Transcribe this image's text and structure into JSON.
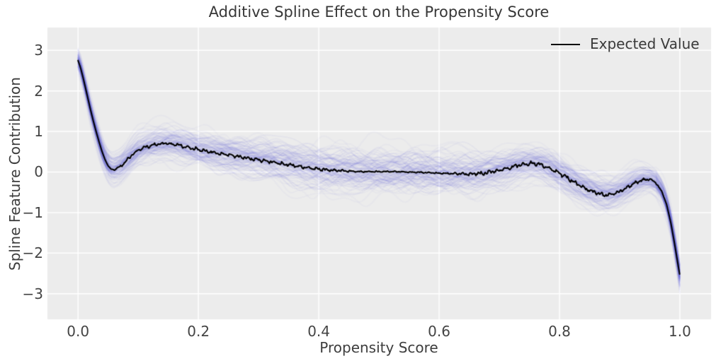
{
  "title": "Additive Spline Effect on the Propensity Score",
  "axes": {
    "xlabel": "Propensity Score",
    "ylabel": "Spline Feature Contribution",
    "xlim": [
      -0.052,
      1.053
    ],
    "ylim": [
      -3.65,
      3.58
    ],
    "x_ticks": [
      0.0,
      0.2,
      0.4,
      0.6,
      0.8,
      1.0
    ],
    "x_tick_labels": [
      "0.0",
      "0.2",
      "0.4",
      "0.6",
      "0.8",
      "1.0"
    ],
    "y_ticks": [
      3,
      2,
      1,
      0,
      -1,
      -2,
      -3
    ],
    "y_tick_labels": [
      "3",
      "2",
      "1",
      "0",
      "−1",
      "−2",
      "−3"
    ],
    "grid": true
  },
  "legend": {
    "label": "Expected Value",
    "position": "upper right"
  },
  "style": {
    "figure_bg": "#ffffff",
    "plot_bg": "#ececec",
    "grid_color": "#ffffff",
    "mean_line_color": "#000000",
    "band_stroke_color": "84,90,214",
    "text_color": "#3d3d3d"
  },
  "chart_data": {
    "type": "line",
    "title": "Additive Spline Effect on the Propensity Score",
    "xlabel": "Propensity Score",
    "ylabel": "Spline Feature Contribution",
    "xlim": [
      -0.052,
      1.053
    ],
    "ylim": [
      -3.65,
      3.58
    ],
    "legend_position": "upper right",
    "series": [
      {
        "name": "Expected Value",
        "color": "#000000",
        "x": [
          0.0,
          0.004,
          0.008,
          0.012,
          0.016,
          0.02,
          0.025,
          0.03,
          0.035,
          0.04,
          0.045,
          0.05,
          0.055,
          0.06,
          0.07,
          0.08,
          0.09,
          0.1,
          0.115,
          0.13,
          0.145,
          0.16,
          0.18,
          0.2,
          0.225,
          0.25,
          0.275,
          0.3,
          0.325,
          0.35,
          0.375,
          0.4,
          0.425,
          0.45,
          0.475,
          0.5,
          0.525,
          0.55,
          0.575,
          0.6,
          0.625,
          0.65,
          0.675,
          0.7,
          0.72,
          0.74,
          0.755,
          0.77,
          0.79,
          0.81,
          0.83,
          0.85,
          0.865,
          0.88,
          0.895,
          0.91,
          0.925,
          0.94,
          0.95,
          0.96,
          0.97,
          0.978,
          0.985,
          0.991,
          0.996,
          1.0
        ],
        "y": [
          2.75,
          2.58,
          2.35,
          2.1,
          1.84,
          1.58,
          1.28,
          1.0,
          0.74,
          0.5,
          0.3,
          0.15,
          0.07,
          0.06,
          0.13,
          0.27,
          0.42,
          0.54,
          0.63,
          0.68,
          0.71,
          0.69,
          0.62,
          0.55,
          0.48,
          0.42,
          0.36,
          0.3,
          0.24,
          0.18,
          0.12,
          0.07,
          0.04,
          0.02,
          0.01,
          0.01,
          0.01,
          0.0,
          -0.01,
          -0.03,
          -0.04,
          -0.05,
          -0.03,
          0.04,
          0.12,
          0.19,
          0.22,
          0.18,
          0.05,
          -0.12,
          -0.3,
          -0.45,
          -0.53,
          -0.57,
          -0.52,
          -0.4,
          -0.27,
          -0.19,
          -0.18,
          -0.26,
          -0.48,
          -0.8,
          -1.25,
          -1.75,
          -2.2,
          -2.55
        ]
      },
      {
        "name": "posterior-sample-band",
        "description": "fuzzy envelope of many translucent blue sample splines around the expected value",
        "x": [
          0.0,
          0.03,
          0.06,
          0.1,
          0.15,
          0.2,
          0.3,
          0.4,
          0.5,
          0.6,
          0.68,
          0.75,
          0.8,
          0.85,
          0.88,
          0.92,
          0.95,
          0.97,
          1.0
        ],
        "halfwidth": [
          0.35,
          0.42,
          0.5,
          0.55,
          0.6,
          0.62,
          0.7,
          0.75,
          0.78,
          0.78,
          0.7,
          0.55,
          0.6,
          0.62,
          0.6,
          0.5,
          0.4,
          0.42,
          0.5
        ]
      }
    ],
    "noise_amplitude_profile": {
      "x": [
        0.0,
        0.05,
        0.07,
        0.2,
        0.4,
        0.47,
        0.6,
        0.66,
        0.8,
        0.93,
        0.962,
        0.975,
        1.0
      ],
      "amp": [
        0.0,
        0.0,
        0.04,
        0.045,
        0.04,
        0.015,
        0.015,
        0.045,
        0.05,
        0.045,
        0.02,
        0.0,
        0.0
      ]
    }
  }
}
